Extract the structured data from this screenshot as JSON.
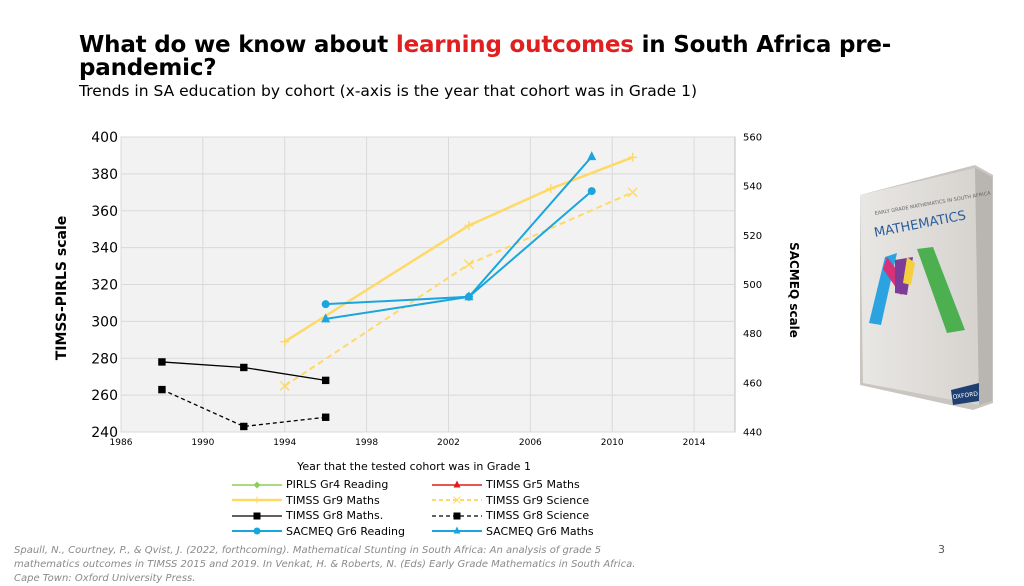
{
  "slide": {
    "title_part1": "What do we know about ",
    "title_highlight": "learning outcomes",
    "title_part2": " in South Africa pre-pandemic?",
    "subtitle": "Trends in SA education by cohort (x-axis is the year that cohort was in Grade 1)",
    "source": "Spaull, N., Courtney, P., & Qvist, J. (2022, forthcoming). Mathematical Stunting in South Africa: An analysis of grade 5 mathematics outcomes in TIMSS 2015 and 2019. In Venkat, H. & Roberts, N. (Eds) Early Grade Mathematics in South Africa. Cape Town: Oxford University Press.",
    "page_number": "3",
    "highlight_color": "#e02020"
  },
  "book": {
    "title": "MATHEMATICS",
    "series_line": "EARLY GRADE MATHEMATICS IN SOUTH AFRICA",
    "publisher": "OXFORD"
  },
  "chart_data": {
    "type": "line",
    "xlabel": "Year that the tested cohort was in Grade 1",
    "ylabel_left": "TIMSS-PIRLS scale",
    "ylabel_right": "SACMEQ scale",
    "xlim": [
      1986,
      2016
    ],
    "x_ticks": [
      1986,
      1990,
      1994,
      1998,
      2002,
      2006,
      2010,
      2014
    ],
    "ylim_left": [
      240,
      400
    ],
    "y_ticks_left": [
      240,
      260,
      280,
      300,
      320,
      340,
      360,
      380,
      400
    ],
    "ylim_right": [
      440,
      560
    ],
    "y_ticks_right": [
      440,
      460,
      480,
      500,
      520,
      540,
      560
    ],
    "grid": true,
    "series": [
      {
        "name": "PIRLS Gr4 Reading",
        "axis": "left",
        "color": "#8fce5a",
        "dash": false,
        "marker": "diamond",
        "points": []
      },
      {
        "name": "TIMSS Gr5 Maths",
        "axis": "left",
        "color": "#e01b1b",
        "dash": false,
        "marker": "triangle",
        "points": []
      },
      {
        "name": "TIMSS Gr9 Maths",
        "axis": "left",
        "color": "#ffd966",
        "dash": false,
        "marker": "plus",
        "width": 2.5,
        "points": [
          [
            1994,
            289
          ],
          [
            2003,
            352
          ],
          [
            2007,
            372
          ],
          [
            2011,
            389
          ]
        ]
      },
      {
        "name": "TIMSS Gr9 Science",
        "axis": "left",
        "color": "#ffd966",
        "dash": true,
        "marker": "x",
        "width": 2,
        "points": [
          [
            1994,
            265
          ],
          [
            2003,
            331
          ],
          [
            2011,
            370
          ]
        ]
      },
      {
        "name": "TIMSS Gr8 Maths.",
        "axis": "left",
        "color": "#000000",
        "dash": false,
        "marker": "square",
        "width": 1.3,
        "points": [
          [
            1988,
            278
          ],
          [
            1992,
            275
          ],
          [
            1996,
            268
          ]
        ]
      },
      {
        "name": "TIMSS Gr8 Science",
        "axis": "left",
        "color": "#000000",
        "dash": true,
        "marker": "square",
        "width": 1.3,
        "points": [
          [
            1988,
            263
          ],
          [
            1992,
            243
          ],
          [
            1996,
            248
          ]
        ]
      },
      {
        "name": "SACMEQ Gr6 Reading",
        "axis": "right",
        "color": "#1aa6dd",
        "dash": false,
        "marker": "circle",
        "width": 2,
        "points": [
          [
            1996,
            492
          ],
          [
            2003,
            495
          ],
          [
            2009,
            538
          ]
        ]
      },
      {
        "name": "SACMEQ Gr6 Maths",
        "axis": "right",
        "color": "#1aa6dd",
        "dash": false,
        "marker": "triangle",
        "width": 2,
        "points": [
          [
            1996,
            486
          ],
          [
            2003,
            495
          ],
          [
            2009,
            552
          ]
        ]
      }
    ]
  }
}
